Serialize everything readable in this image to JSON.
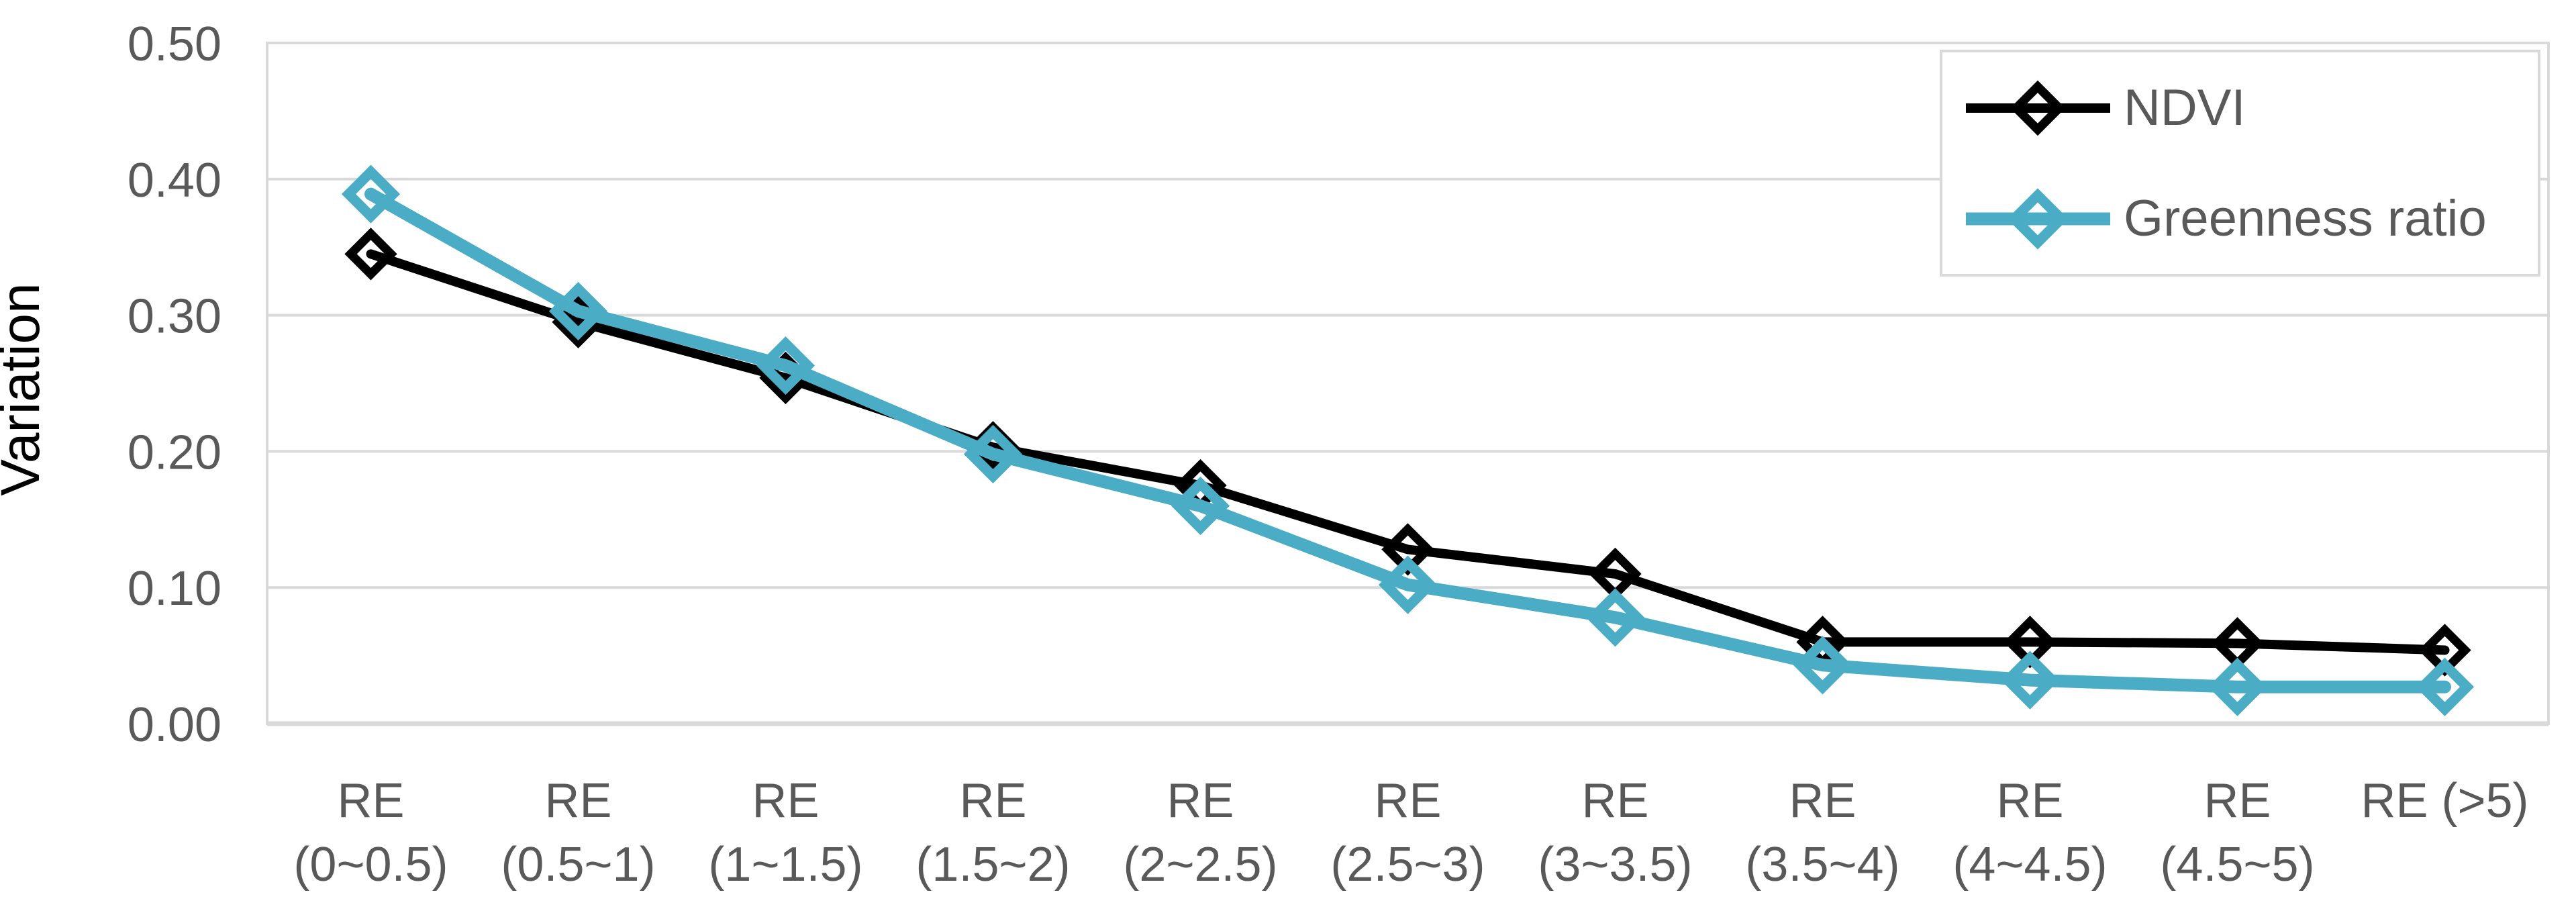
{
  "chart_data": {
    "type": "line",
    "title": "",
    "ylabel": "Variation",
    "xlabel": "",
    "ylim": [
      0,
      0.5
    ],
    "ytick_labels": [
      "0.00",
      "0.10",
      "0.20",
      "0.30",
      "0.40",
      "0.50"
    ],
    "categories": [
      "RE\n(0~0.5)",
      "RE\n(0.5~1)",
      "RE\n(1~1.5)",
      "RE\n(1.5~2)",
      "RE\n(2~2.5)",
      "RE\n(2.5~3)",
      "RE\n(3~3.5)",
      "RE\n(3.5~4)",
      "RE\n(4~4.5)",
      "RE\n(4.5~5)",
      "RE (>5)"
    ],
    "series": [
      {
        "name": "NDVI",
        "color": "#000000",
        "marker": "open-diamond",
        "values": [
          0.345,
          0.295,
          0.254,
          0.203,
          0.175,
          0.128,
          0.11,
          0.06,
          0.06,
          0.059,
          0.054
        ]
      },
      {
        "name": "Greenness ratio",
        "color": "#4BACC6",
        "marker": "open-diamond",
        "values": [
          0.389,
          0.303,
          0.263,
          0.198,
          0.16,
          0.102,
          0.078,
          0.043,
          0.032,
          0.027,
          0.027
        ]
      }
    ],
    "grid": true,
    "grid_color": "#D9D9D9",
    "text_color": "#595959",
    "legend_position": "top-right"
  }
}
